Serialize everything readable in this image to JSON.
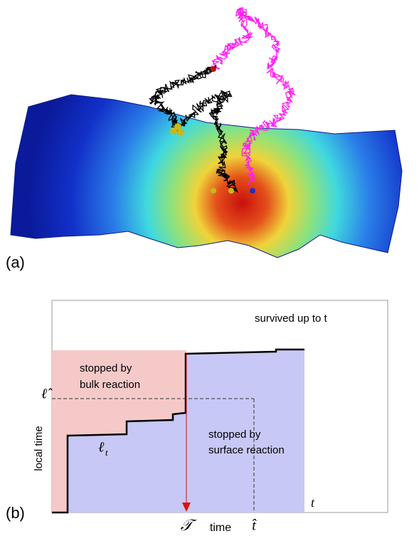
{
  "panel_a": {
    "label": "(a)"
  },
  "panel_b": {
    "label": "(b)",
    "survived": "survived up to t",
    "bulk": [
      "stopped by",
      "bulk reaction"
    ],
    "surface": [
      "stopped by",
      "surface reaction"
    ],
    "y_label": "local time",
    "ell_hat": "ℓ̂",
    "ell_t": {
      "base": "ℓ",
      "sub": "t"
    },
    "t_axis": "t",
    "tau": "𝒯",
    "x_label": "time",
    "t_hat": "t̂"
  }
}
